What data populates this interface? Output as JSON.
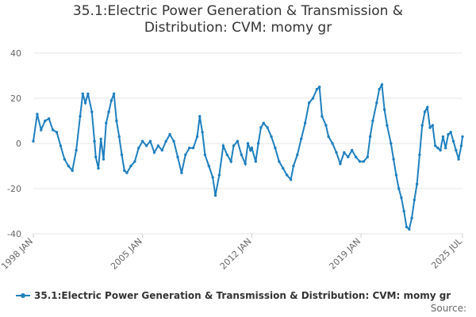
{
  "title_lines": [
    "35.1:Electric Power Generation & Transmission &",
    "Distribution: CVM: momy gr"
  ],
  "source_label": "Source:",
  "colors": {
    "series": "#1f7fbf",
    "grid": "#e6e6e6",
    "axis": "#cccccc",
    "text": "#333333",
    "tick": "#666666"
  },
  "chart_data": {
    "type": "line",
    "title": "35.1:Electric Power Generation & Transmission & Distribution: CVM: momy gr",
    "ylim": [
      -40,
      40
    ],
    "yticks": [
      40,
      20,
      0,
      -20,
      -40
    ],
    "xlim": [
      "1998-01",
      "2025-07"
    ],
    "xticks": [
      "1998 JAN",
      "2005 JAN",
      "2012 JAN",
      "2019 JAN",
      "2025 JUL"
    ],
    "xtick_dates": [
      "1998-01",
      "2005-01",
      "2012-01",
      "2019-01",
      "2025-07"
    ],
    "grid": true,
    "legend_position": "bottom",
    "series": [
      {
        "name": "35.1:Electric Power Generation & Transmission & Distribution: CVM: momy gr",
        "points": [
          [
            "1998-01",
            1
          ],
          [
            "1998-04",
            13
          ],
          [
            "1998-07",
            6
          ],
          [
            "1998-10",
            10
          ],
          [
            "1999-01",
            11
          ],
          [
            "1999-04",
            6
          ],
          [
            "1999-07",
            5
          ],
          [
            "1999-10",
            -1
          ],
          [
            "2000-01",
            -7
          ],
          [
            "2000-04",
            -10
          ],
          [
            "2000-07",
            -12
          ],
          [
            "2000-10",
            -3
          ],
          [
            "2001-01",
            12
          ],
          [
            "2001-03",
            22
          ],
          [
            "2001-05",
            18
          ],
          [
            "2001-07",
            22
          ],
          [
            "2001-10",
            14
          ],
          [
            "2001-12",
            1
          ],
          [
            "2002-01",
            -6
          ],
          [
            "2002-03",
            -11
          ],
          [
            "2002-05",
            2
          ],
          [
            "2002-07",
            -7
          ],
          [
            "2002-09",
            9
          ],
          [
            "2002-11",
            14
          ],
          [
            "2003-01",
            19
          ],
          [
            "2003-03",
            22
          ],
          [
            "2003-05",
            10
          ],
          [
            "2003-07",
            3
          ],
          [
            "2003-09",
            -5
          ],
          [
            "2003-11",
            -12
          ],
          [
            "2004-01",
            -13
          ],
          [
            "2004-04",
            -10
          ],
          [
            "2004-07",
            -8
          ],
          [
            "2004-10",
            -2
          ],
          [
            "2005-01",
            1
          ],
          [
            "2005-04",
            -1
          ],
          [
            "2005-07",
            1
          ],
          [
            "2005-10",
            -4
          ],
          [
            "2006-01",
            -1
          ],
          [
            "2006-04",
            -3
          ],
          [
            "2006-07",
            1
          ],
          [
            "2006-10",
            4
          ],
          [
            "2007-01",
            1
          ],
          [
            "2007-04",
            -6
          ],
          [
            "2007-07",
            -13
          ],
          [
            "2007-10",
            -5
          ],
          [
            "2008-01",
            -2
          ],
          [
            "2008-04",
            -2
          ],
          [
            "2008-07",
            3
          ],
          [
            "2008-09",
            12
          ],
          [
            "2008-11",
            5
          ],
          [
            "2009-01",
            -5
          ],
          [
            "2009-04",
            -10
          ],
          [
            "2009-07",
            -15
          ],
          [
            "2009-09",
            -23
          ],
          [
            "2009-12",
            -14
          ],
          [
            "2010-03",
            -1
          ],
          [
            "2010-06",
            -5
          ],
          [
            "2010-09",
            -8
          ],
          [
            "2010-11",
            -1
          ],
          [
            "2011-02",
            1
          ],
          [
            "2011-05",
            -5
          ],
          [
            "2011-08",
            -9
          ],
          [
            "2011-10",
            0
          ],
          [
            "2011-12",
            -3
          ],
          [
            "2012-01",
            -2
          ],
          [
            "2012-04",
            -8
          ],
          [
            "2012-06",
            0
          ],
          [
            "2012-08",
            7
          ],
          [
            "2012-10",
            9
          ],
          [
            "2013-01",
            7
          ],
          [
            "2013-04",
            3
          ],
          [
            "2013-07",
            -2
          ],
          [
            "2013-10",
            -8
          ],
          [
            "2014-01",
            -11
          ],
          [
            "2014-04",
            -14
          ],
          [
            "2014-07",
            -16
          ],
          [
            "2014-09",
            -10
          ],
          [
            "2014-12",
            -5
          ],
          [
            "2015-03",
            2
          ],
          [
            "2015-06",
            9
          ],
          [
            "2015-09",
            18
          ],
          [
            "2015-12",
            20
          ],
          [
            "2016-03",
            24
          ],
          [
            "2016-05",
            25
          ],
          [
            "2016-07",
            12
          ],
          [
            "2016-10",
            8
          ],
          [
            "2016-12",
            3
          ],
          [
            "2017-03",
            0
          ],
          [
            "2017-06",
            -4
          ],
          [
            "2017-09",
            -9
          ],
          [
            "2017-12",
            -4
          ],
          [
            "2018-03",
            -6
          ],
          [
            "2018-06",
            -3
          ],
          [
            "2018-09",
            -6
          ],
          [
            "2018-12",
            -8
          ],
          [
            "2019-03",
            -8
          ],
          [
            "2019-06",
            -6
          ],
          [
            "2019-08",
            3
          ],
          [
            "2019-10",
            10
          ],
          [
            "2020-01",
            18
          ],
          [
            "2020-03",
            24
          ],
          [
            "2020-05",
            26
          ],
          [
            "2020-07",
            15
          ],
          [
            "2020-09",
            8
          ],
          [
            "2020-12",
            0
          ],
          [
            "2021-02",
            -7
          ],
          [
            "2021-04",
            -14
          ],
          [
            "2021-06",
            -20
          ],
          [
            "2021-08",
            -24
          ],
          [
            "2021-10",
            -30
          ],
          [
            "2021-12",
            -37
          ],
          [
            "2022-02",
            -38
          ],
          [
            "2022-04",
            -33
          ],
          [
            "2022-06",
            -25
          ],
          [
            "2022-08",
            -18
          ],
          [
            "2022-10",
            -5
          ],
          [
            "2022-12",
            8
          ],
          [
            "2023-02",
            14
          ],
          [
            "2023-04",
            16
          ],
          [
            "2023-06",
            7
          ],
          [
            "2023-08",
            8
          ],
          [
            "2023-10",
            -1
          ],
          [
            "2023-12",
            -2
          ],
          [
            "2024-02",
            -3
          ],
          [
            "2024-04",
            3
          ],
          [
            "2024-06",
            -2
          ],
          [
            "2024-08",
            4
          ],
          [
            "2024-10",
            5
          ],
          [
            "2024-12",
            1
          ],
          [
            "2025-02",
            -3
          ],
          [
            "2025-04",
            -7
          ],
          [
            "2025-06",
            -1
          ],
          [
            "2025-07",
            3
          ]
        ]
      }
    ]
  }
}
